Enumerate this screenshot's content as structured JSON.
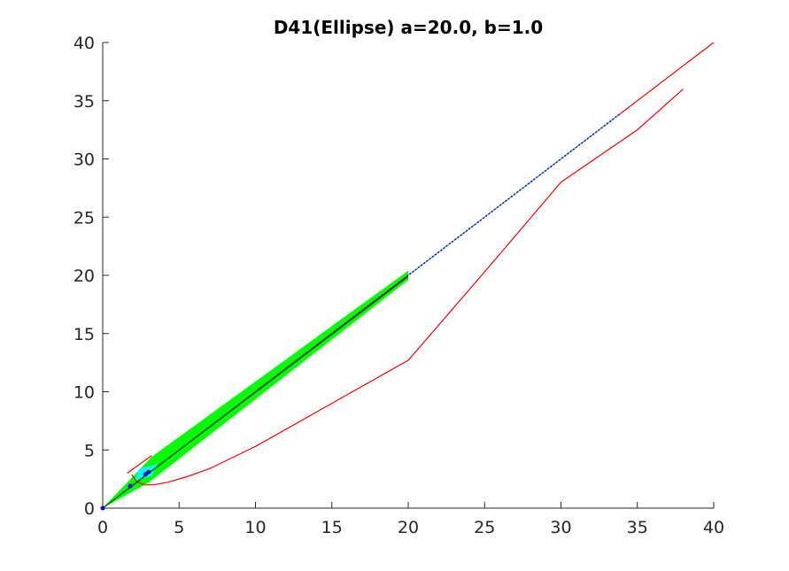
{
  "chart_data": {
    "type": "line",
    "title": "D41(Ellipse) a=20.0, b=1.0",
    "xlabel": "",
    "ylabel": "",
    "xlim": [
      0,
      40
    ],
    "ylim": [
      0,
      40
    ],
    "xticks": [
      0,
      5,
      10,
      15,
      20,
      25,
      30,
      35,
      40
    ],
    "yticks": [
      0,
      5,
      10,
      15,
      20,
      25,
      30,
      35,
      40
    ],
    "grid": false,
    "legend": "none",
    "colors": {
      "axis": "#262626",
      "red": "#ff0000",
      "green": "#00ff00",
      "dark_green": "#006400",
      "cyan": "#00ffff",
      "blue": "#0000ff",
      "navy": "#000080"
    },
    "filled_regions": [
      {
        "color": "#00ff00",
        "points": [
          [
            0,
            0
          ],
          [
            3.2,
            4.4
          ],
          [
            20,
            20.4
          ],
          [
            20,
            19.6
          ],
          [
            3.0,
            2.2
          ],
          [
            0,
            0
          ]
        ]
      },
      {
        "color": "#00ffff",
        "points": [
          [
            2.1,
            2.4
          ],
          [
            2.4,
            3.4
          ],
          [
            3.6,
            3.8
          ],
          [
            3.2,
            2.8
          ],
          [
            2.1,
            2.4
          ]
        ]
      }
    ],
    "series": [
      {
        "color": "#ff0000",
        "style": "solid",
        "x": [
          1.3,
          20,
          40
        ],
        "y": [
          1.3,
          20,
          40
        ]
      },
      {
        "color": "#ff0000",
        "style": "solid",
        "x": [
          1.9,
          2.2,
          2.7,
          3.3,
          4.2,
          5.5,
          7,
          10,
          15,
          20,
          25,
          30,
          35,
          38
        ],
        "y": [
          2.9,
          2.3,
          2.0,
          2.0,
          2.2,
          2.7,
          3.4,
          5.3,
          9.0,
          12.7,
          20.3,
          28.0,
          32.5,
          36.0
        ]
      },
      {
        "color": "#ff0000",
        "style": "solid",
        "x": [
          1.6,
          3.2
        ],
        "y": [
          3.0,
          4.5
        ]
      },
      {
        "color": "#0000ff",
        "style": "dotted",
        "x": [
          0,
          5,
          10,
          15,
          20,
          25,
          30,
          33.8
        ],
        "y": [
          0,
          5,
          10,
          15,
          20,
          25,
          30,
          33.8
        ]
      },
      {
        "color": "#00ffff",
        "style": "dotted",
        "x": [
          20,
          25,
          30,
          33.8
        ],
        "y": [
          20,
          25,
          30,
          33.8
        ]
      },
      {
        "color": "#006400",
        "style": "solid",
        "x": [
          0,
          20
        ],
        "y": [
          0,
          19.9
        ]
      }
    ],
    "points": [
      {
        "x": 1.8,
        "y": 1.9,
        "color": "#0000ff"
      },
      {
        "x": 2.8,
        "y": 2.9,
        "color": "#0000ff"
      },
      {
        "x": 3.0,
        "y": 3.1,
        "color": "#000080"
      },
      {
        "x": 0,
        "y": 0,
        "color": "#0000ff"
      }
    ]
  }
}
